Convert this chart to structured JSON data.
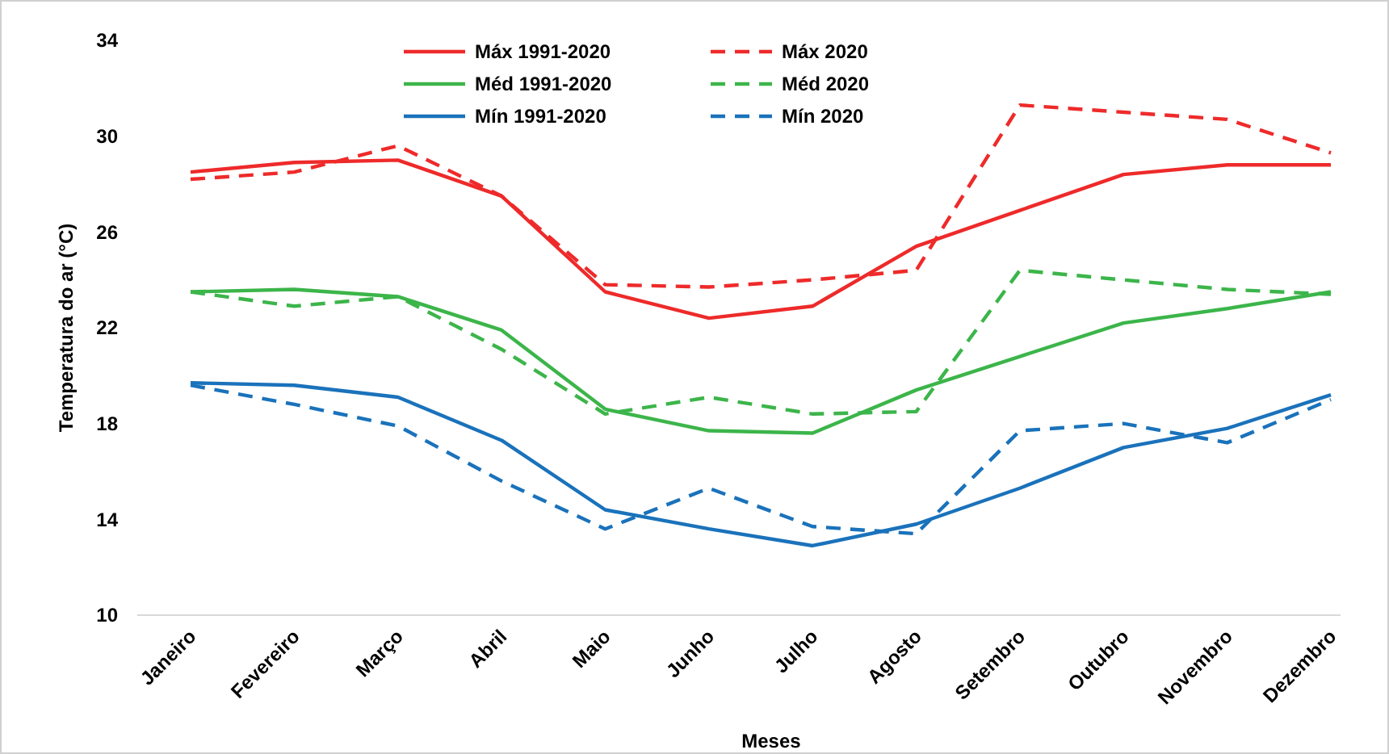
{
  "chart_data": {
    "type": "line",
    "xlabel": "Meses",
    "ylabel": "Temperatura do ar (°C)",
    "categories": [
      "Janeiro",
      "Fevereiro",
      "Março",
      "Abril",
      "Maio",
      "Junho",
      "Julho",
      "Agosto",
      "Setembro",
      "Outubro",
      "Novembro",
      "Dezembro"
    ],
    "ylim": [
      10,
      34
    ],
    "yticks": [
      10,
      14,
      18,
      22,
      26,
      30,
      34
    ],
    "grid": false,
    "legend": "top",
    "marker": "none",
    "series": [
      {
        "name": "Máx 1991-2020",
        "color": "#ee2a2a",
        "line_style": "solid",
        "values": [
          28.5,
          28.9,
          29.0,
          27.5,
          23.5,
          22.4,
          22.9,
          25.4,
          26.9,
          28.4,
          28.8,
          28.8
        ]
      },
      {
        "name": "Máx 2020",
        "color": "#ee2a2a",
        "line_style": "dashed",
        "values": [
          28.2,
          28.5,
          29.6,
          27.5,
          23.8,
          23.7,
          24.0,
          24.4,
          31.3,
          31.0,
          30.7,
          29.3
        ]
      },
      {
        "name": "Méd 1991-2020",
        "color": "#3cb54a",
        "line_style": "solid",
        "values": [
          23.5,
          23.6,
          23.3,
          21.9,
          18.6,
          17.7,
          17.6,
          19.4,
          20.8,
          22.2,
          22.8,
          23.5
        ]
      },
      {
        "name": "Méd 2020",
        "color": "#3cb54a",
        "line_style": "dashed",
        "values": [
          23.5,
          22.9,
          23.3,
          21.1,
          18.4,
          19.1,
          18.4,
          18.5,
          24.4,
          24.0,
          23.6,
          23.4
        ]
      },
      {
        "name": "Mín 1991-2020",
        "color": "#1a72bb",
        "line_style": "solid",
        "values": [
          19.7,
          19.6,
          19.1,
          17.3,
          14.4,
          13.6,
          12.9,
          13.8,
          15.3,
          17.0,
          17.8,
          19.2
        ]
      },
      {
        "name": "Mín 2020",
        "color": "#1a72bb",
        "line_style": "dashed",
        "values": [
          19.6,
          18.8,
          17.9,
          15.6,
          13.6,
          15.3,
          13.7,
          13.4,
          17.7,
          18.0,
          17.2,
          19.0
        ]
      }
    ]
  }
}
